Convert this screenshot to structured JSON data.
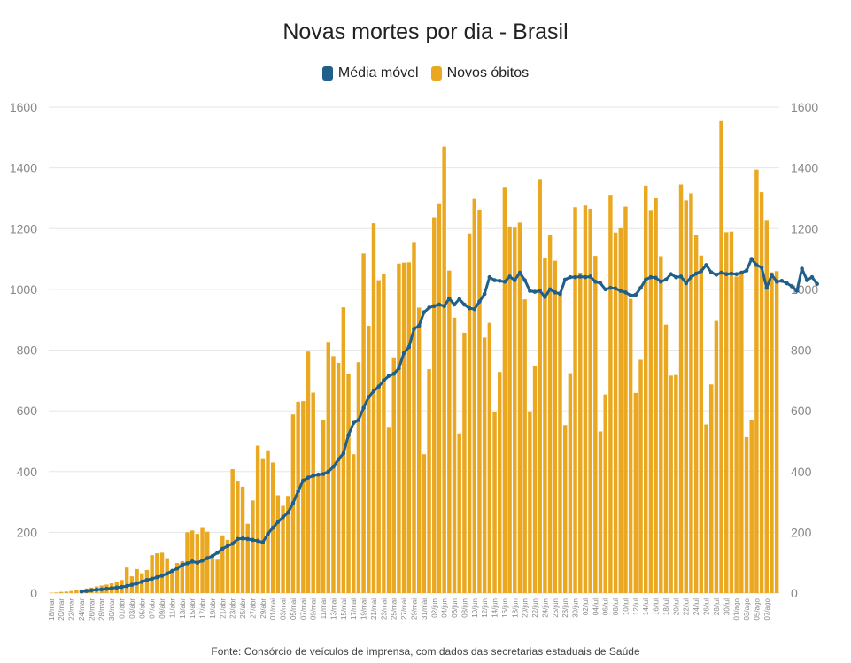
{
  "colors": {
    "bar": "#EAA820",
    "line": "#1F5F8B",
    "grid": "#e6e6e6",
    "tick": "#888888"
  },
  "chart_data": {
    "type": "bar",
    "title": "Novas mortes por dia - Brasil",
    "source": "Fonte: Consórcio de veículos de imprensa, com dados das secretarias estaduais de Saúde",
    "ylim": [
      0,
      1600
    ],
    "y_ticks": [
      0,
      200,
      400,
      600,
      800,
      1000,
      1200,
      1400,
      1600
    ],
    "x_tick_labels": [
      "18/mar",
      "20/mar",
      "22/mar",
      "24/mar",
      "26/mar",
      "28/mar",
      "30/mar",
      "01/abr",
      "03/abr",
      "05/abr",
      "07/abr",
      "09/abr",
      "11/abr",
      "13/abr",
      "15/abr",
      "17/abr",
      "19/abr",
      "21/abr",
      "23/abr",
      "25/abr",
      "27/abr",
      "29/abr",
      "01/mai",
      "03/mai",
      "05/mai",
      "07/mai",
      "09/mai",
      "11/mai",
      "13/mai",
      "15/mai",
      "17/mai",
      "19/mai",
      "21/mai",
      "23/mai",
      "25/mai",
      "27/mai",
      "29/mai",
      "31/mai",
      "02/jun",
      "04/jun",
      "06/jun",
      "08/jun",
      "10/jun",
      "12/jun",
      "14/jun",
      "16/jun",
      "18/jun",
      "20/jun",
      "22/jun",
      "24/jun",
      "26/jun",
      "28/jun",
      "30/jun",
      "02/jul",
      "04/jul",
      "06/jul",
      "08/jul",
      "10/jul",
      "12/jul",
      "14/jul",
      "16/jul",
      "18/jul",
      "20/jul",
      "22/jul",
      "24/jul",
      "26/jul",
      "28/jul",
      "30/jul",
      "01/ago",
      "03/ago",
      "05/ago",
      "07/ago"
    ],
    "series": [
      {
        "name": "Novos óbitos",
        "values": [
          1,
          2,
          4,
          5,
          7,
          9,
          12,
          15,
          18,
          22,
          25,
          28,
          32,
          38,
          43,
          84,
          55,
          79,
          65,
          76,
          125,
          131,
          133,
          115,
          68,
          99,
          105,
          200,
          206,
          195,
          217,
          202,
          115,
          110,
          190,
          175,
          408,
          370,
          350,
          228,
          305,
          485,
          444,
          470,
          430,
          322,
          287,
          320,
          588,
          630,
          632,
          795,
          660,
          392,
          570,
          827,
          780,
          758,
          941,
          720,
          457,
          760,
          1118,
          880,
          1218,
          1030,
          1050,
          547,
          776,
          1085,
          1088,
          1089,
          1156,
          940,
          457,
          737,
          1237,
          1283,
          1470,
          1062,
          907,
          525,
          857,
          1184,
          1298,
          1262,
          841,
          890,
          596,
          728,
          1337,
          1207,
          1203,
          1220,
          967,
          598,
          747,
          1363,
          1103,
          1180,
          1094,
          994,
          553,
          724,
          1270,
          1055,
          1276,
          1265,
          1110,
          532,
          654,
          1311,
          1187,
          1201,
          1272,
          969,
          659,
          768,
          1341,
          1261,
          1300,
          1109,
          884,
          716,
          718,
          1345,
          1293,
          1316,
          1180,
          1111,
          555,
          687,
          896,
          1554,
          1188,
          1190,
          1042,
          1052,
          513,
          571,
          1394,
          1320,
          1226,
          1056,
          1060
        ]
      },
      {
        "name": "Média móvel",
        "start_index": 6,
        "values": [
          5,
          7,
          9,
          11,
          12,
          14,
          16,
          18,
          20,
          23,
          27,
          32,
          37,
          43,
          47,
          52,
          57,
          64,
          73,
          81,
          93,
          98,
          104,
          100,
          107,
          115,
          122,
          133,
          146,
          155,
          163,
          178,
          180,
          178,
          175,
          172,
          167,
          195,
          215,
          234,
          250,
          265,
          296,
          335,
          370,
          380,
          386,
          390,
          392,
          400,
          416,
          440,
          460,
          520,
          560,
          570,
          610,
          645,
          665,
          680,
          700,
          715,
          722,
          740,
          790,
          810,
          870,
          880,
          925,
          940,
          945,
          950,
          945,
          970,
          950,
          968,
          950,
          938,
          935,
          960,
          985,
          1040,
          1030,
          1028,
          1025,
          1042,
          1030,
          1055,
          1030,
          995,
          992,
          995,
          975,
          1000,
          990,
          985,
          1032,
          1040,
          1040,
          1042,
          1040,
          1042,
          1025,
          1020,
          1000,
          1005,
          1003,
          995,
          990,
          980,
          982,
          1005,
          1032,
          1040,
          1038,
          1025,
          1032,
          1050,
          1040,
          1042,
          1020,
          1040,
          1052,
          1060,
          1080,
          1056,
          1048,
          1055,
          1050,
          1052,
          1050,
          1055,
          1062,
          1100,
          1080,
          1072,
          1005,
          1048,
          1025,
          1028,
          1020,
          1010,
          995,
          1068,
          1030,
          1040,
          1018
        ]
      }
    ]
  }
}
